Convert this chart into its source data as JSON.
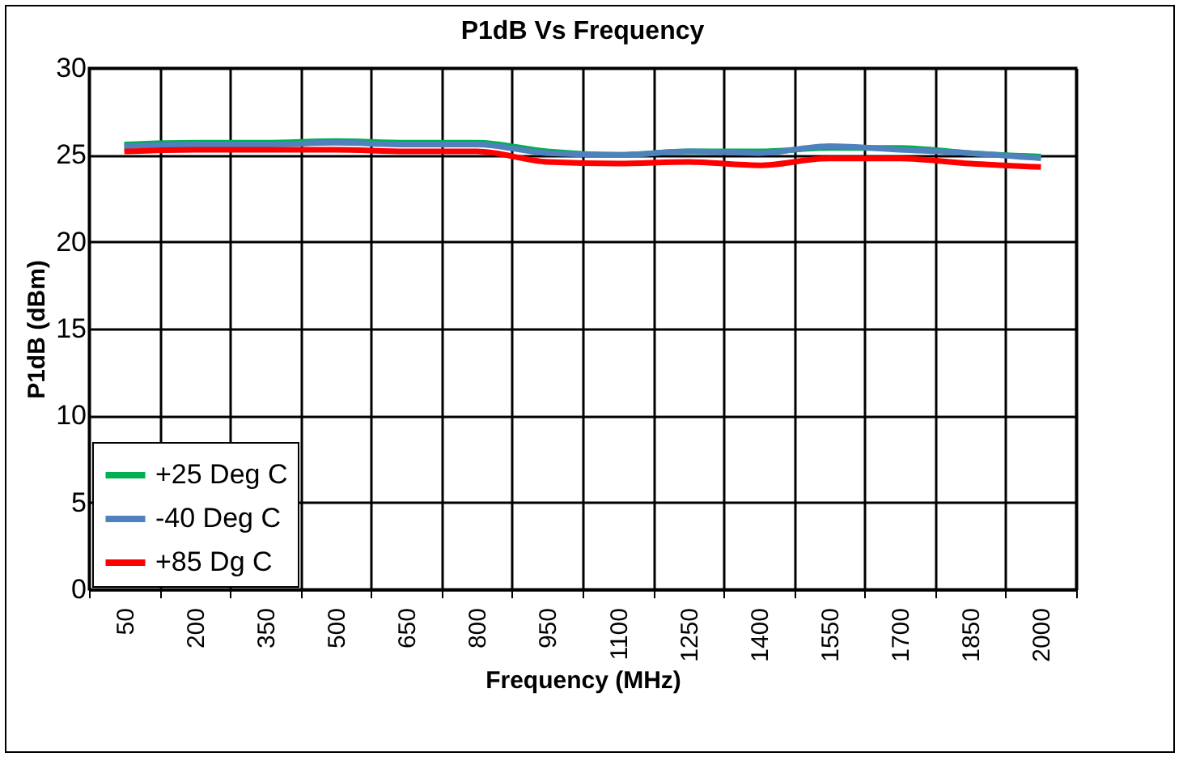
{
  "chart_data": {
    "type": "line",
    "title": "P1dB Vs Frequency",
    "xlabel": "Frequency (MHz)",
    "ylabel": "P1dB (dBm)",
    "categories": [
      "50",
      "200",
      "350",
      "500",
      "650",
      "800",
      "950",
      "1100",
      "1250",
      "1400",
      "1550",
      "1700",
      "1850",
      "2000"
    ],
    "ylim": [
      0,
      30
    ],
    "yticks": [
      0,
      5,
      10,
      15,
      20,
      25,
      30
    ],
    "grid": true,
    "legend": "bottom left",
    "marker": "none",
    "line_style": "solid",
    "series": [
      {
        "name": "+25 Deg C",
        "color": "#00b050",
        "values": [
          25.6,
          25.7,
          25.7,
          25.8,
          25.7,
          25.7,
          25.2,
          25.0,
          25.2,
          25.2,
          25.4,
          25.4,
          25.1,
          24.9
        ]
      },
      {
        "name": "-40 Deg C",
        "color": "#4f81bd",
        "values": [
          25.5,
          25.6,
          25.6,
          25.7,
          25.6,
          25.6,
          25.1,
          25.0,
          25.2,
          25.1,
          25.5,
          25.3,
          25.1,
          24.8
        ]
      },
      {
        "name": "+85 Dg C",
        "color": "#ff0000",
        "values": [
          25.2,
          25.3,
          25.3,
          25.3,
          25.2,
          25.2,
          24.6,
          24.5,
          24.6,
          24.4,
          24.8,
          24.8,
          24.5,
          24.3
        ]
      }
    ]
  }
}
